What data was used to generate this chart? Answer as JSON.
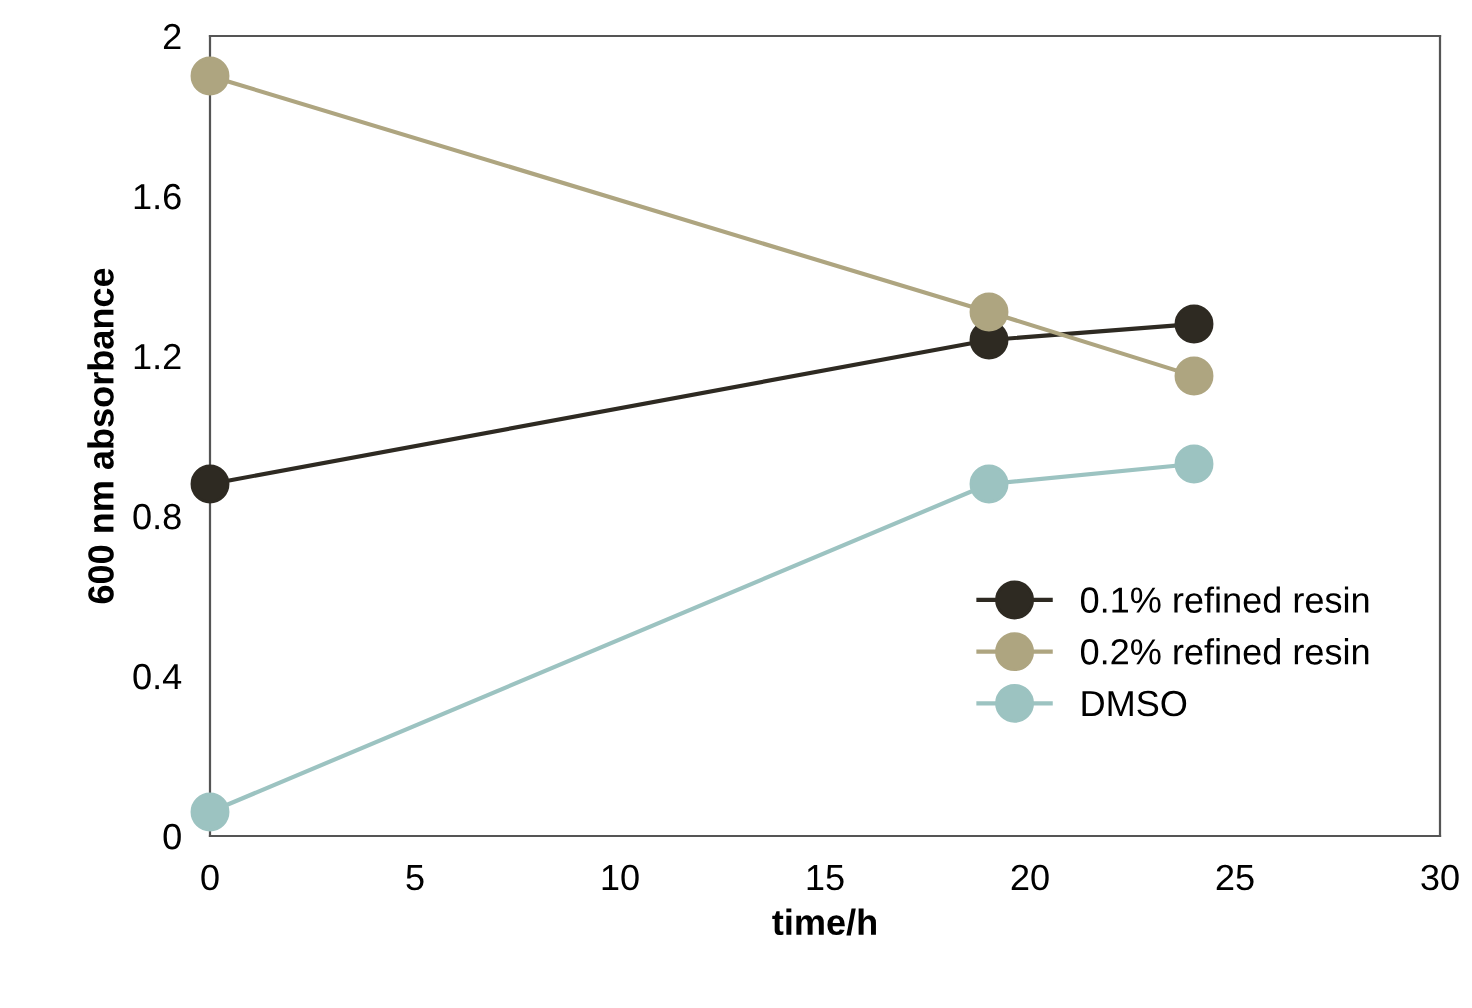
{
  "chart_data": {
    "type": "line",
    "xlabel": "time/h",
    "ylabel": "600 nm absorbance",
    "xlim": [
      0,
      30
    ],
    "xticks": [
      0,
      5,
      10,
      15,
      20,
      25,
      30
    ],
    "ylim": [
      0,
      2
    ],
    "yticks": [
      0,
      0.4,
      0.8,
      1.2,
      1.6,
      2
    ],
    "grid": false,
    "legend": "bottom right",
    "marker": "circle",
    "line_style": "solid",
    "series": [
      {
        "name": "0.1% refined resin",
        "color": "#2e2a22",
        "x": [
          0,
          19,
          24
        ],
        "values": [
          0.88,
          1.24,
          1.28
        ]
      },
      {
        "name": "0.2% refined resin",
        "color": "#aea580",
        "x": [
          0,
          19,
          24
        ],
        "values": [
          1.9,
          1.31,
          1.15
        ]
      },
      {
        "name": "DMSO",
        "color": "#9cc3c1",
        "x": [
          0,
          19,
          24
        ],
        "values": [
          0.06,
          0.88,
          0.93
        ]
      }
    ]
  }
}
